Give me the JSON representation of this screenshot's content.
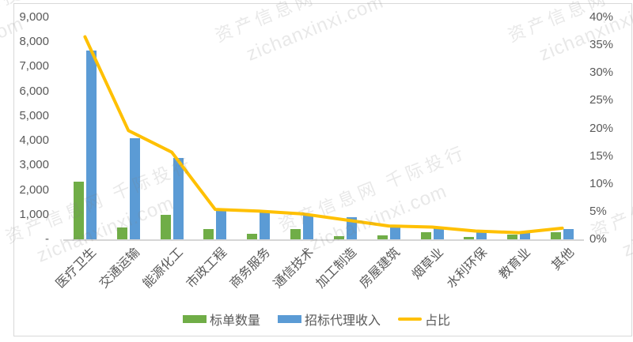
{
  "watermark": {
    "line1": "资产信息网 千际投行",
    "line2": "zichanxinxi.com"
  },
  "chart_data": {
    "type": "bar",
    "subtype": "combo-bar-line-dual-axis",
    "title": "",
    "categories": [
      "医疗卫生",
      "交通运输",
      "能源化工",
      "市政工程",
      "商务服务",
      "通信技术",
      "加工制造",
      "房屋建筑",
      "烟草业",
      "水利环保",
      "教育业",
      "其他"
    ],
    "series": [
      {
        "name": "标单数量",
        "type": "bar",
        "axis": "left",
        "color": "#70AD47",
        "values": [
          2350,
          480,
          980,
          430,
          230,
          420,
          120,
          160,
          280,
          100,
          190,
          290
        ]
      },
      {
        "name": "招标代理收入",
        "type": "bar",
        "axis": "left",
        "color": "#5B9BD5",
        "values": [
          7650,
          4100,
          3290,
          1140,
          1100,
          950,
          900,
          510,
          480,
          320,
          260,
          420
        ]
      },
      {
        "name": "占比",
        "type": "line",
        "axis": "right",
        "color": "#FFC000",
        "values": [
          36.5,
          19.6,
          15.7,
          5.4,
          5.1,
          4.6,
          3.5,
          2.4,
          2.2,
          1.5,
          1.2,
          2.0
        ]
      }
    ],
    "left_axis": {
      "min": 0,
      "max": 9000,
      "tick_labels": [
        "9,000",
        "8,000",
        "7,000",
        "6,000",
        "5,000",
        "4,000",
        "3,000",
        "2,000",
        "1,000",
        "-"
      ]
    },
    "right_axis": {
      "min": 0,
      "max": 40,
      "unit": "%",
      "tick_labels": [
        "40%",
        "35%",
        "30%",
        "25%",
        "20%",
        "15%",
        "10%",
        "5%",
        "0%"
      ]
    },
    "legend": {
      "position": "bottom",
      "items": [
        "标单数量",
        "招标代理收入",
        "占比"
      ]
    },
    "grid": false
  }
}
